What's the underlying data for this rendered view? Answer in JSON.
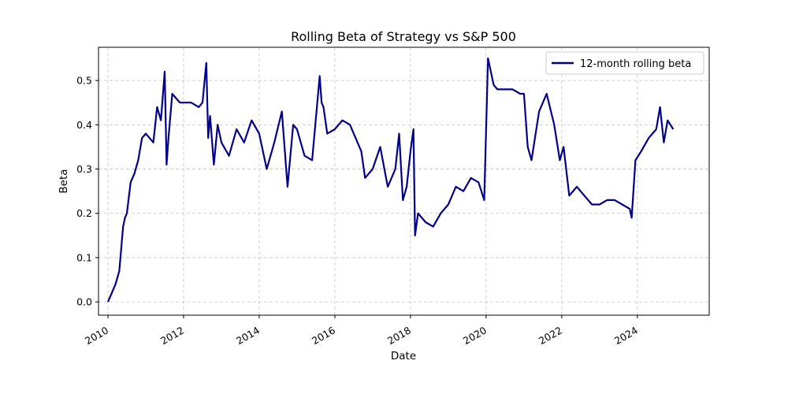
{
  "chart_data": {
    "type": "line",
    "title": "Rolling Beta of Strategy vs S&P 500",
    "xlabel": "Date",
    "ylabel": "Beta",
    "xlim": [
      2009.75,
      2025.9
    ],
    "ylim": [
      -0.03,
      0.575
    ],
    "x_ticks": [
      2010,
      2012,
      2014,
      2016,
      2018,
      2020,
      2022,
      2024
    ],
    "x_tick_labels": [
      "2010",
      "2012",
      "2014",
      "2016",
      "2018",
      "2020",
      "2022",
      "2024"
    ],
    "y_ticks": [
      0.0,
      0.1,
      0.2,
      0.3,
      0.4,
      0.5
    ],
    "y_tick_labels": [
      "0.0",
      "0.1",
      "0.2",
      "0.3",
      "0.4",
      "0.5"
    ],
    "grid": true,
    "legend_position": "top-right",
    "line_color": "#00008b",
    "series": [
      {
        "name": "12-month rolling beta",
        "x": [
          2010.0,
          2010.1,
          2010.2,
          2010.3,
          2010.4,
          2010.45,
          2010.5,
          2010.6,
          2010.7,
          2010.8,
          2010.9,
          2011.0,
          2011.1,
          2011.2,
          2011.3,
          2011.4,
          2011.5,
          2011.55,
          2011.6,
          2011.7,
          2011.8,
          2011.9,
          2012.0,
          2012.2,
          2012.4,
          2012.5,
          2012.6,
          2012.65,
          2012.7,
          2012.8,
          2012.9,
          2013.0,
          2013.2,
          2013.4,
          2013.6,
          2013.8,
          2014.0,
          2014.2,
          2014.4,
          2014.6,
          2014.75,
          2014.9,
          2015.0,
          2015.2,
          2015.4,
          2015.6,
          2015.65,
          2015.7,
          2015.8,
          2016.0,
          2016.2,
          2016.4,
          2016.6,
          2016.7,
          2016.8,
          2017.0,
          2017.2,
          2017.4,
          2017.6,
          2017.7,
          2017.8,
          2017.9,
          2018.0,
          2018.08,
          2018.12,
          2018.2,
          2018.4,
          2018.6,
          2018.8,
          2019.0,
          2019.2,
          2019.4,
          2019.6,
          2019.8,
          2019.95,
          2020.05,
          2020.2,
          2020.3,
          2020.5,
          2020.7,
          2020.9,
          2021.0,
          2021.1,
          2021.2,
          2021.4,
          2021.6,
          2021.8,
          2021.95,
          2022.05,
          2022.2,
          2022.4,
          2022.6,
          2022.8,
          2023.0,
          2023.2,
          2023.4,
          2023.6,
          2023.8,
          2023.85,
          2023.95,
          2024.1,
          2024.3,
          2024.5,
          2024.6,
          2024.7,
          2024.8,
          2024.95
        ],
        "y": [
          0.0,
          0.02,
          0.04,
          0.07,
          0.17,
          0.19,
          0.2,
          0.27,
          0.29,
          0.32,
          0.37,
          0.38,
          0.37,
          0.36,
          0.44,
          0.41,
          0.52,
          0.31,
          0.37,
          0.47,
          0.46,
          0.45,
          0.45,
          0.45,
          0.44,
          0.45,
          0.54,
          0.37,
          0.42,
          0.31,
          0.4,
          0.36,
          0.33,
          0.39,
          0.36,
          0.41,
          0.38,
          0.3,
          0.36,
          0.43,
          0.26,
          0.4,
          0.39,
          0.33,
          0.32,
          0.51,
          0.45,
          0.44,
          0.38,
          0.39,
          0.41,
          0.4,
          0.36,
          0.34,
          0.28,
          0.3,
          0.35,
          0.26,
          0.3,
          0.38,
          0.23,
          0.26,
          0.34,
          0.39,
          0.15,
          0.2,
          0.18,
          0.17,
          0.2,
          0.22,
          0.26,
          0.25,
          0.28,
          0.27,
          0.23,
          0.55,
          0.49,
          0.48,
          0.48,
          0.48,
          0.47,
          0.47,
          0.35,
          0.32,
          0.43,
          0.47,
          0.4,
          0.32,
          0.35,
          0.24,
          0.26,
          0.24,
          0.22,
          0.22,
          0.23,
          0.23,
          0.22,
          0.21,
          0.19,
          0.32,
          0.34,
          0.37,
          0.39,
          0.44,
          0.36,
          0.41,
          0.39
        ]
      }
    ]
  }
}
